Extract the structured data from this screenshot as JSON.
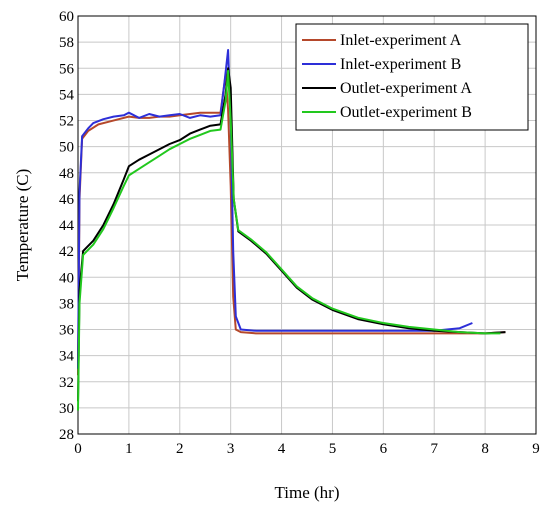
{
  "chart_data": {
    "type": "line",
    "xlabel": "Time (hr)",
    "ylabel": "Temperature (C)",
    "xlim": [
      0,
      9
    ],
    "ylim": [
      28,
      60
    ],
    "xticks": [
      0,
      1,
      2,
      3,
      4,
      5,
      6,
      7,
      8,
      9
    ],
    "yticks": [
      28,
      30,
      32,
      34,
      36,
      38,
      40,
      42,
      44,
      46,
      48,
      50,
      52,
      54,
      56,
      58,
      60
    ],
    "grid": true,
    "legend_position": "top-right",
    "series": [
      {
        "name": "Inlet-experiment A",
        "color": "#b5482b",
        "points": [
          [
            0.0,
            32.5
          ],
          [
            0.03,
            46.0
          ],
          [
            0.08,
            50.6
          ],
          [
            0.2,
            51.2
          ],
          [
            0.4,
            51.7
          ],
          [
            0.6,
            51.9
          ],
          [
            0.8,
            52.1
          ],
          [
            1.0,
            52.3
          ],
          [
            1.2,
            52.2
          ],
          [
            1.4,
            52.2
          ],
          [
            1.6,
            52.3
          ],
          [
            1.8,
            52.3
          ],
          [
            2.0,
            52.4
          ],
          [
            2.2,
            52.5
          ],
          [
            2.4,
            52.6
          ],
          [
            2.6,
            52.6
          ],
          [
            2.8,
            52.6
          ],
          [
            2.9,
            55.5
          ],
          [
            2.95,
            52.8
          ],
          [
            3.0,
            47.0
          ],
          [
            3.05,
            38.5
          ],
          [
            3.1,
            36.0
          ],
          [
            3.2,
            35.8
          ],
          [
            3.5,
            35.7
          ],
          [
            4.0,
            35.7
          ],
          [
            5.0,
            35.7
          ],
          [
            6.0,
            35.7
          ],
          [
            7.0,
            35.7
          ],
          [
            8.0,
            35.7
          ],
          [
            8.4,
            35.8
          ]
        ]
      },
      {
        "name": "Inlet-experiment B",
        "color": "#2d2fd8",
        "points": [
          [
            0.0,
            33.0
          ],
          [
            0.03,
            46.5
          ],
          [
            0.08,
            50.8
          ],
          [
            0.2,
            51.4
          ],
          [
            0.3,
            51.8
          ],
          [
            0.5,
            52.1
          ],
          [
            0.7,
            52.3
          ],
          [
            0.9,
            52.4
          ],
          [
            1.0,
            52.6
          ],
          [
            1.2,
            52.2
          ],
          [
            1.4,
            52.5
          ],
          [
            1.6,
            52.3
          ],
          [
            1.8,
            52.4
          ],
          [
            2.0,
            52.5
          ],
          [
            2.2,
            52.2
          ],
          [
            2.4,
            52.4
          ],
          [
            2.6,
            52.3
          ],
          [
            2.8,
            52.4
          ],
          [
            2.88,
            55.0
          ],
          [
            2.95,
            57.4
          ],
          [
            3.0,
            52.0
          ],
          [
            3.05,
            42.0
          ],
          [
            3.1,
            37.0
          ],
          [
            3.2,
            36.0
          ],
          [
            3.5,
            35.9
          ],
          [
            4.0,
            35.9
          ],
          [
            5.0,
            35.9
          ],
          [
            6.0,
            35.9
          ],
          [
            7.0,
            35.9
          ],
          [
            7.5,
            36.1
          ],
          [
            7.75,
            36.5
          ]
        ]
      },
      {
        "name": "Outlet-experiment A",
        "color": "#000000",
        "points": [
          [
            0.0,
            30.5
          ],
          [
            0.03,
            39.0
          ],
          [
            0.1,
            42.0
          ],
          [
            0.3,
            42.8
          ],
          [
            0.5,
            44.0
          ],
          [
            0.7,
            45.6
          ],
          [
            0.9,
            47.5
          ],
          [
            1.0,
            48.5
          ],
          [
            1.2,
            49.0
          ],
          [
            1.4,
            49.4
          ],
          [
            1.6,
            49.8
          ],
          [
            1.8,
            50.2
          ],
          [
            2.0,
            50.5
          ],
          [
            2.2,
            51.0
          ],
          [
            2.4,
            51.3
          ],
          [
            2.6,
            51.6
          ],
          [
            2.8,
            51.7
          ],
          [
            2.9,
            54.0
          ],
          [
            2.95,
            56.0
          ],
          [
            3.0,
            54.5
          ],
          [
            3.06,
            46.0
          ],
          [
            3.15,
            43.5
          ],
          [
            3.4,
            42.8
          ],
          [
            3.7,
            41.8
          ],
          [
            4.0,
            40.5
          ],
          [
            4.3,
            39.2
          ],
          [
            4.6,
            38.3
          ],
          [
            5.0,
            37.5
          ],
          [
            5.5,
            36.8
          ],
          [
            6.0,
            36.4
          ],
          [
            6.5,
            36.1
          ],
          [
            7.0,
            35.9
          ],
          [
            7.5,
            35.8
          ],
          [
            8.0,
            35.7
          ],
          [
            8.4,
            35.8
          ]
        ]
      },
      {
        "name": "Outlet-experiment B",
        "color": "#22c81e",
        "points": [
          [
            0.0,
            29.8
          ],
          [
            0.03,
            38.0
          ],
          [
            0.1,
            41.7
          ],
          [
            0.3,
            42.5
          ],
          [
            0.5,
            43.7
          ],
          [
            0.7,
            45.3
          ],
          [
            0.9,
            47.0
          ],
          [
            1.0,
            47.8
          ],
          [
            1.2,
            48.3
          ],
          [
            1.4,
            48.8
          ],
          [
            1.6,
            49.3
          ],
          [
            1.8,
            49.8
          ],
          [
            2.0,
            50.2
          ],
          [
            2.2,
            50.6
          ],
          [
            2.4,
            50.9
          ],
          [
            2.6,
            51.2
          ],
          [
            2.8,
            51.3
          ],
          [
            2.9,
            53.5
          ],
          [
            2.95,
            55.8
          ],
          [
            3.0,
            52.0
          ],
          [
            3.06,
            46.0
          ],
          [
            3.15,
            43.6
          ],
          [
            3.4,
            42.9
          ],
          [
            3.7,
            41.9
          ],
          [
            4.0,
            40.6
          ],
          [
            4.3,
            39.3
          ],
          [
            4.6,
            38.4
          ],
          [
            5.0,
            37.6
          ],
          [
            5.5,
            36.9
          ],
          [
            6.0,
            36.5
          ],
          [
            6.5,
            36.2
          ],
          [
            7.0,
            36.0
          ],
          [
            7.5,
            35.8
          ],
          [
            8.0,
            35.7
          ],
          [
            8.3,
            35.7
          ]
        ]
      }
    ]
  }
}
